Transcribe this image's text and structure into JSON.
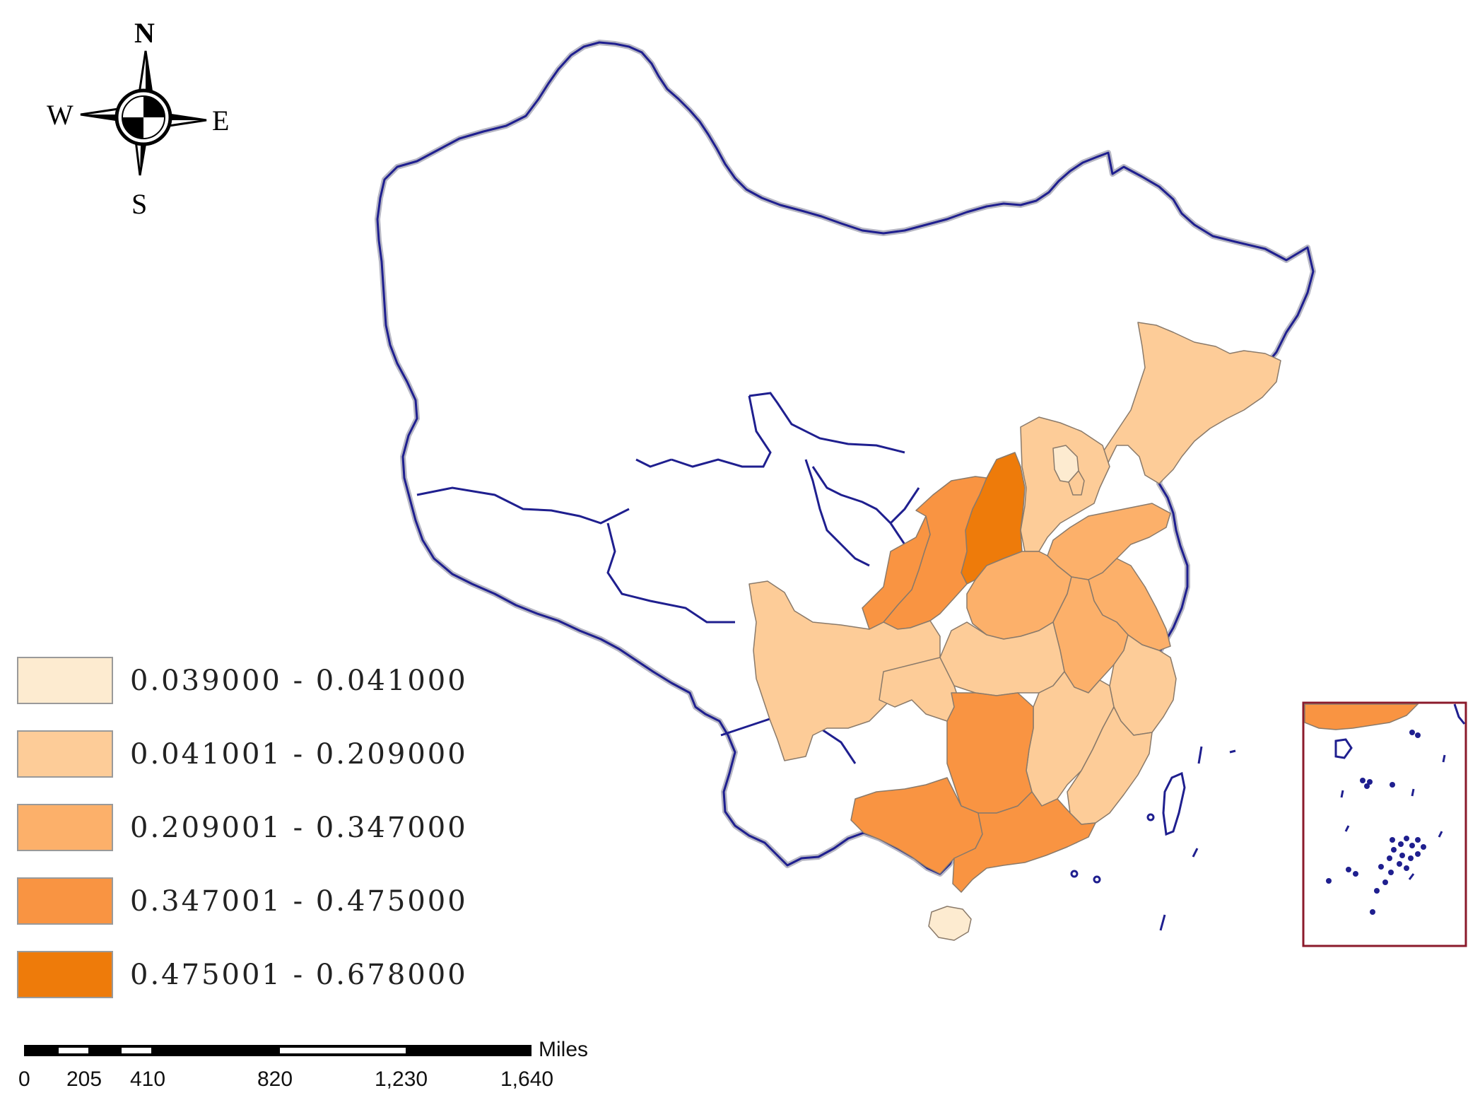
{
  "compass": {
    "north": "N",
    "south": "S",
    "east": "E",
    "west": "W"
  },
  "legend": [
    {
      "label": "0.039000 - 0.041000",
      "color": "#fdebd0"
    },
    {
      "label": "0.041001 - 0.209000",
      "color": "#fdcc98"
    },
    {
      "label": "0.209001 - 0.347000",
      "color": "#fcb06a"
    },
    {
      "label": "0.347001 - 0.475000",
      "color": "#f99442"
    },
    {
      "label": "0.475001 - 0.678000",
      "color": "#ee7b0a"
    }
  ],
  "scale_bar": {
    "unit": "Miles",
    "ticks": [
      "0",
      "205",
      "410",
      "820",
      "1,230",
      "1,640"
    ]
  },
  "colors": {
    "boundary": "#1f1f8f",
    "inset_frame": "#8b1a2b",
    "no_data": "#ffffff"
  }
}
